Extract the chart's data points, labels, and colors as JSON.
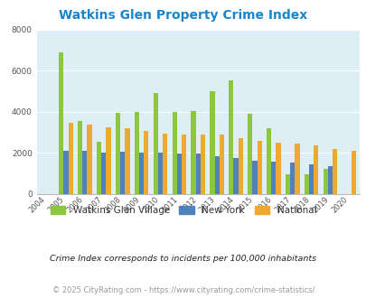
{
  "title": "Watkins Glen Property Crime Index",
  "years": [
    2004,
    2005,
    2006,
    2007,
    2008,
    2009,
    2010,
    2011,
    2012,
    2013,
    2014,
    2015,
    2016,
    2017,
    2018,
    2019,
    2020
  ],
  "watkins_glen": [
    0,
    6900,
    3550,
    2550,
    3950,
    4000,
    4900,
    4000,
    4050,
    5000,
    5550,
    3900,
    3200,
    950,
    950,
    1200,
    0
  ],
  "new_york": [
    0,
    2100,
    2100,
    2000,
    2050,
    2000,
    2000,
    1950,
    1950,
    1850,
    1750,
    1600,
    1550,
    1500,
    1450,
    1350,
    0
  ],
  "national": [
    0,
    3450,
    3350,
    3250,
    3200,
    3050,
    2950,
    2900,
    2900,
    2900,
    2700,
    2600,
    2500,
    2450,
    2350,
    2200,
    2100
  ],
  "watkins_color": "#8dc63f",
  "ny_color": "#4f81bd",
  "national_color": "#f0a830",
  "bg_color": "#ddeef5",
  "ylim": [
    0,
    8000
  ],
  "yticks": [
    0,
    2000,
    4000,
    6000,
    8000
  ],
  "legend_labels": [
    "Watkins Glen Village",
    "New York",
    "National"
  ],
  "footnote1": "Crime Index corresponds to incidents per 100,000 inhabitants",
  "footnote2": "© 2025 CityRating.com - https://www.cityrating.com/crime-statistics/",
  "title_color": "#1a85cb",
  "footnote1_color": "#222222",
  "footnote2_color": "#999999",
  "bar_width": 0.25
}
